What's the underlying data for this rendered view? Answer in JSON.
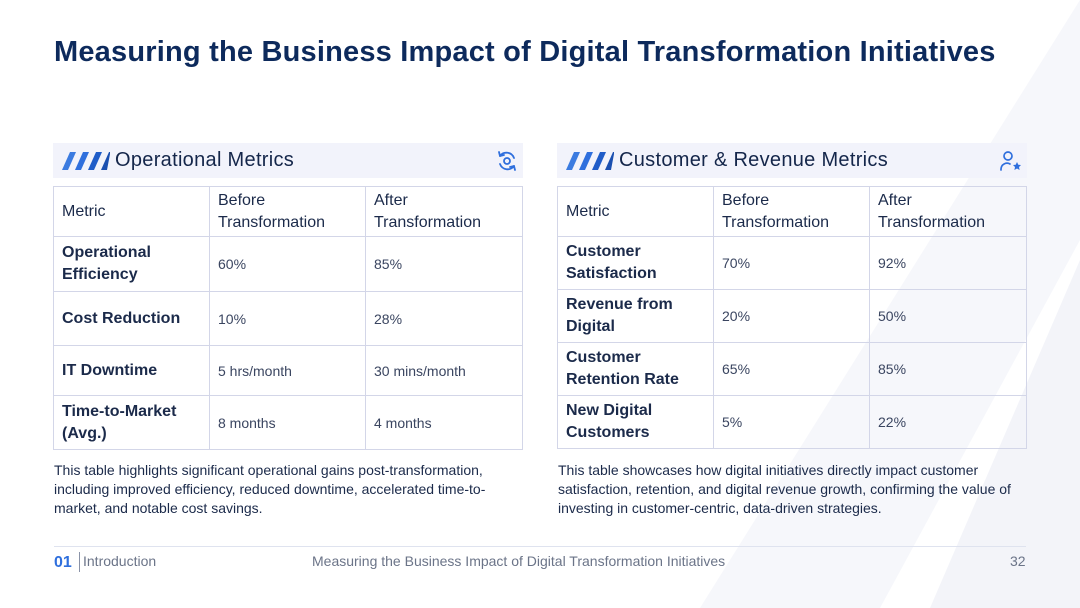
{
  "title": "Measuring the Business Impact of Digital Transformation Initiatives",
  "colors": {
    "title": "#0d2a5c",
    "accent": "#2f6fdd",
    "header_bg": "#f2f3fb",
    "border": "#d3d6e8"
  },
  "left_panel": {
    "title": "Operational Metrics",
    "icon": "refresh-cycle-icon",
    "headers": [
      "Metric",
      "Before Transformation",
      "After Transformation"
    ],
    "rows": [
      [
        "Operational Efficiency",
        "60%",
        "85%"
      ],
      [
        "Cost Reduction",
        "10%",
        "28%"
      ],
      [
        "IT Downtime",
        "5 hrs/month",
        "30 mins/month"
      ],
      [
        "Time-to-Market (Avg.)",
        "8 months",
        "4 months"
      ]
    ],
    "description": "This table highlights significant operational gains post-transformation, including improved efficiency, reduced downtime, accelerated time-to-market, and notable cost savings."
  },
  "right_panel": {
    "title": "Customer & Revenue Metrics",
    "icon": "user-star-icon",
    "headers": [
      "Metric",
      "Before Transformation",
      "After Transformation"
    ],
    "rows": [
      [
        "Customer Satisfaction",
        "70%",
        "92%"
      ],
      [
        "Revenue from Digital",
        "20%",
        "50%"
      ],
      [
        "Customer Retention Rate",
        "65%",
        "85%"
      ],
      [
        "New Digital Customers",
        "5%",
        "22%"
      ]
    ],
    "description": "This table showcases how digital initiatives directly impact customer satisfaction, retention, and digital revenue growth, confirming the value of investing in customer-centric, data-driven strategies."
  },
  "footer": {
    "section_number": "01",
    "section_name": "Introduction",
    "center_text": "Measuring the Business Impact of Digital Transformation Initiatives",
    "page_number": "32"
  }
}
